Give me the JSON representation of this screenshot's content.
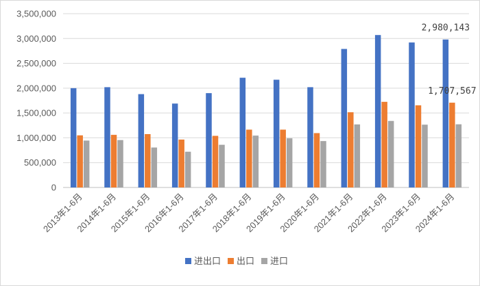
{
  "chart_data": {
    "type": "bar",
    "title": "",
    "xlabel": "",
    "ylabel": "",
    "ylim": [
      0,
      3500000
    ],
    "yticks": [
      0,
      500000,
      1000000,
      1500000,
      2000000,
      2500000,
      3000000,
      3500000
    ],
    "ytick_labels": [
      "0",
      "500,000",
      "1,000,000",
      "1,500,000",
      "2,000,000",
      "2,500,000",
      "3,000,000",
      "3,500,000"
    ],
    "grid": true,
    "legend_position": "bottom",
    "categories": [
      "2013年1-6月",
      "2014年1-6月",
      "2015年1-6月",
      "2016年1-6月",
      "2017年1-6月",
      "2018年1-6月",
      "2019年1-6月",
      "2020年1-6月",
      "2021年1-6月",
      "2022年1-6月",
      "2023年1-6月",
      "2024年1-6月"
    ],
    "series": [
      {
        "name": "进出口",
        "color": "#4472C4",
        "values": [
          2000000,
          2020000,
          1880000,
          1690000,
          1900000,
          2210000,
          2170000,
          2020000,
          2790000,
          3070000,
          2920000,
          2980143
        ]
      },
      {
        "name": "出口",
        "color": "#ED7D31",
        "values": [
          1050000,
          1060000,
          1075000,
          965000,
          1040000,
          1165000,
          1165000,
          1095000,
          1515000,
          1725000,
          1655000,
          1707567
        ]
      },
      {
        "name": "进口",
        "color": "#A5A5A5",
        "values": [
          945000,
          955000,
          805000,
          720000,
          860000,
          1045000,
          990000,
          935000,
          1270000,
          1340000,
          1265000,
          1272576
        ]
      }
    ],
    "annotations": [
      {
        "series": 0,
        "category": 11,
        "text": "2,980,143"
      },
      {
        "series": 1,
        "category": 11,
        "text": "1,707,567"
      }
    ]
  }
}
